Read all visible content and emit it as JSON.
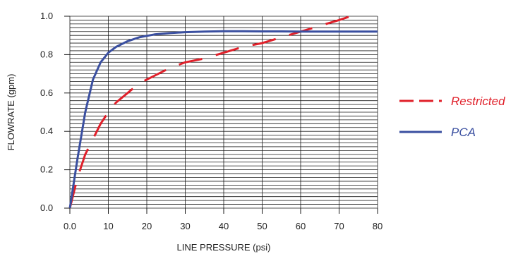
{
  "chart_data": {
    "type": "line",
    "xlabel": "LINE PRESSURE (psi)",
    "ylabel": "FLOWRATE (gpm)",
    "xlim": [
      0,
      80
    ],
    "ylim": [
      0,
      1.0
    ],
    "x_ticks": [
      0,
      10,
      20,
      30,
      40,
      50,
      60,
      70,
      80
    ],
    "x_tick_labels": [
      "0.0",
      "10",
      "20",
      "30",
      "40",
      "50",
      "60",
      "70",
      "80"
    ],
    "y_ticks": [
      0,
      0.2,
      0.4,
      0.6,
      0.8,
      1.0
    ],
    "y_tick_labels": [
      "0.0",
      "0.2",
      "0.4",
      "0.6",
      "0.8",
      "1.0"
    ],
    "grid": {
      "horizontal_step": 0.02,
      "vertical_step": 10
    },
    "legend_position": "right",
    "series": [
      {
        "name": "Restricted",
        "color": "#e0202a",
        "style": "dashed",
        "x": [
          0,
          2,
          4,
          6,
          8,
          10,
          12,
          15,
          18,
          22,
          26,
          30,
          35,
          40,
          45,
          50,
          55,
          60,
          65,
          70,
          73
        ],
        "y": [
          0,
          0.16,
          0.28,
          0.36,
          0.44,
          0.5,
          0.55,
          0.6,
          0.65,
          0.69,
          0.73,
          0.76,
          0.78,
          0.81,
          0.84,
          0.86,
          0.89,
          0.92,
          0.95,
          0.98,
          1.0
        ]
      },
      {
        "name": "PCA",
        "color": "#3a4fa0",
        "style": "solid",
        "x": [
          0,
          2,
          4,
          6,
          8,
          10,
          12,
          15,
          18,
          22,
          26,
          30,
          35,
          40,
          45,
          50,
          55,
          60,
          65,
          70,
          75,
          80
        ],
        "y": [
          0,
          0.26,
          0.5,
          0.67,
          0.76,
          0.81,
          0.84,
          0.87,
          0.89,
          0.905,
          0.912,
          0.917,
          0.92,
          0.922,
          0.922,
          0.921,
          0.921,
          0.92,
          0.92,
          0.92,
          0.92,
          0.92
        ]
      }
    ]
  }
}
